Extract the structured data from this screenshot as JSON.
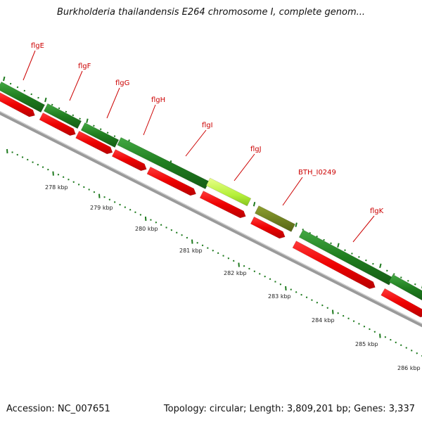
{
  "title": "Burkholderia thailandensis E264 chromosome I, complete genom...",
  "footer": {
    "accession": "Accession: NC_007651",
    "summary": "Topology: circular; Length: 3,809,201 bp; Genes: 3,337"
  },
  "colors": {
    "cds_strand": "#1e7a1e",
    "highlight_gene": "#b5f03a",
    "olive_gene": "#6b7f1f",
    "red_feature": "#ee0000",
    "backbone": "#8a8a8a",
    "label": "#cc0000",
    "tick": "#1e7a1e"
  },
  "genes": [
    {
      "name": "flgE"
    },
    {
      "name": "flgF"
    },
    {
      "name": "flgG"
    },
    {
      "name": "flgH"
    },
    {
      "name": "flgI"
    },
    {
      "name": "flgJ"
    },
    {
      "name": "BTH_I0249"
    },
    {
      "name": "flgK"
    }
  ],
  "kbp_labels": [
    "278 kbp",
    "279 kbp",
    "280 kbp",
    "281 kbp",
    "282 kbp",
    "283 kbp",
    "284 kbp",
    "285 kbp",
    "286 kbp"
  ]
}
